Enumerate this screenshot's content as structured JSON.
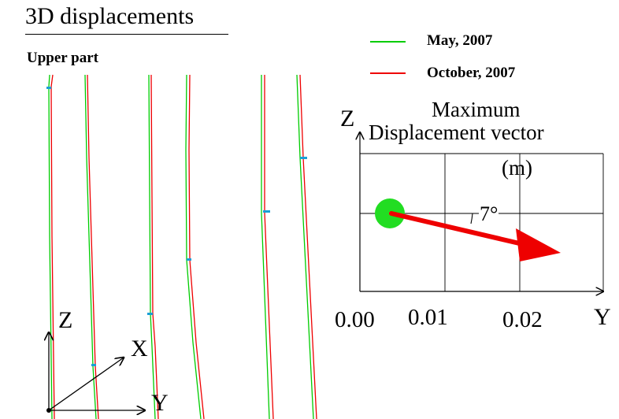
{
  "title": "3D displacements",
  "subtitle": "Upper part",
  "legend": [
    {
      "label": "May, 2007",
      "color": "#00cc00"
    },
    {
      "label": "October, 2007",
      "color": "#ee0000"
    }
  ],
  "colors": {
    "may": "#00cc00",
    "october": "#ee0000",
    "marker": "#1a9fd6",
    "origin_dot": "#22dd22",
    "arrow": "#ee0000"
  },
  "vector_panel": {
    "title_line1": "Maximum",
    "title_line2": "Displacement vector",
    "units": "(m)",
    "z_label": "Z",
    "y_label": "Y",
    "angle_label": "7°",
    "ticks": [
      "0.00",
      "0.01",
      "0.02"
    ],
    "angle_deg": 7,
    "vector_start_m": 0.0005,
    "vector_end_m": 0.024
  },
  "axes_triad": {
    "z": "Z",
    "x": "X",
    "y": "Y"
  }
}
